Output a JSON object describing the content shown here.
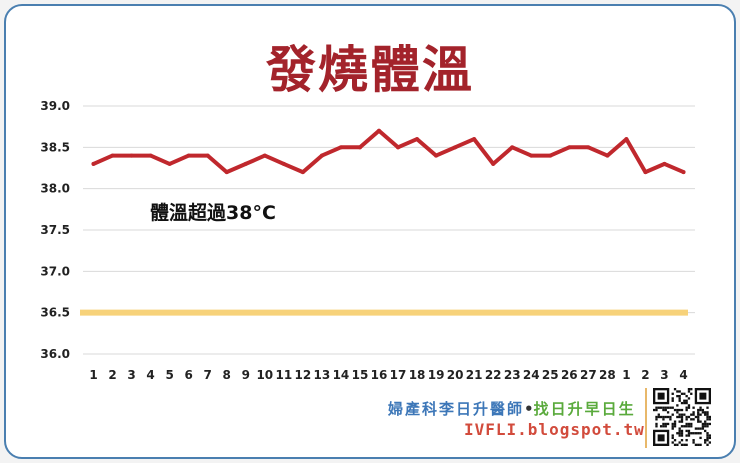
{
  "chart_data": {
    "type": "line",
    "title": "發燒體溫",
    "annotation": "體溫超過38°C",
    "ylim": [
      36.0,
      39.0
    ],
    "y_ticks": [
      "39.0",
      "38.5",
      "38.0",
      "37.5",
      "37.0",
      "36.5",
      "36.0"
    ],
    "grid": true,
    "categories": [
      "1",
      "2",
      "3",
      "4",
      "5",
      "6",
      "7",
      "8",
      "9",
      "10",
      "11",
      "12",
      "13",
      "14",
      "15",
      "16",
      "17",
      "18",
      "19",
      "20",
      "21",
      "22",
      "23",
      "24",
      "25",
      "26",
      "27",
      "28",
      "1",
      "2",
      "3",
      "4"
    ],
    "series": [
      {
        "values": [
          38.3,
          38.4,
          38.4,
          38.4,
          38.3,
          38.4,
          38.4,
          38.2,
          38.3,
          38.4,
          38.3,
          38.2,
          38.4,
          38.5,
          38.5,
          38.7,
          38.5,
          38.6,
          38.4,
          38.5,
          38.6,
          38.3,
          38.5,
          38.4,
          38.4,
          38.5,
          38.5,
          38.4,
          38.6,
          38.2,
          38.3,
          38.2
        ],
        "color": "#c0282d"
      }
    ],
    "reference_line": {
      "value": 36.5,
      "color": "#f7d27a"
    }
  },
  "credit": {
    "name_part1": "婦產科李日升醫師",
    "separator": "•",
    "name_part2": "找日升早日生",
    "url": "IVFLI.blogspot.tw"
  },
  "colors": {
    "border": "#4a7fb0",
    "title": "#a3232b",
    "line": "#c0282d"
  }
}
